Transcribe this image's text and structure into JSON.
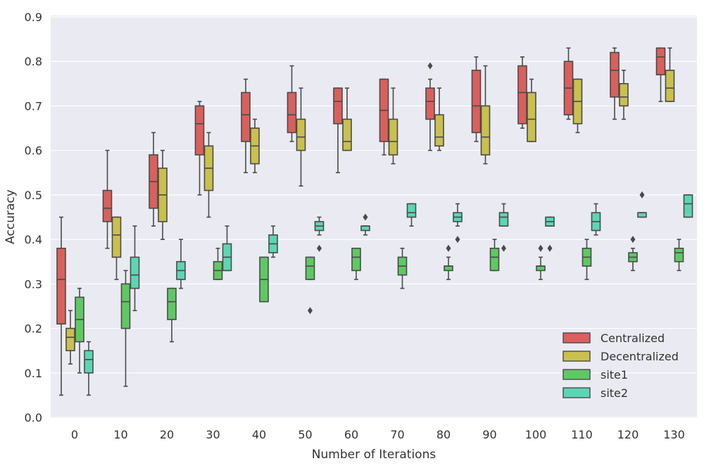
{
  "chart_data": {
    "type": "boxplot",
    "xlabel": "Number of Iterations",
    "ylabel": "Accuracy",
    "ylim": [
      0.0,
      0.9
    ],
    "yticks": [
      "0.0",
      "0.1",
      "0.2",
      "0.3",
      "0.4",
      "0.5",
      "0.6",
      "0.7",
      "0.8",
      "0.9"
    ],
    "categories": [
      "0",
      "10",
      "20",
      "30",
      "40",
      "50",
      "60",
      "70",
      "80",
      "90",
      "100",
      "110",
      "120",
      "130"
    ],
    "grid": true,
    "background": "#eaeaf2",
    "legend_position": "lower-right",
    "series": [
      {
        "name": "Centralized",
        "color": "#d9605c",
        "boxes": [
          {
            "min": 0.05,
            "q1": 0.21,
            "median": 0.31,
            "q3": 0.38,
            "max": 0.45,
            "outliers": []
          },
          {
            "min": 0.38,
            "q1": 0.44,
            "median": 0.47,
            "q3": 0.51,
            "max": 0.6,
            "outliers": []
          },
          {
            "min": 0.43,
            "q1": 0.47,
            "median": 0.53,
            "q3": 0.59,
            "max": 0.64,
            "outliers": []
          },
          {
            "min": 0.5,
            "q1": 0.59,
            "median": 0.66,
            "q3": 0.7,
            "max": 0.71,
            "outliers": []
          },
          {
            "min": 0.55,
            "q1": 0.62,
            "median": 0.68,
            "q3": 0.73,
            "max": 0.76,
            "outliers": []
          },
          {
            "min": 0.62,
            "q1": 0.64,
            "median": 0.68,
            "q3": 0.73,
            "max": 0.79,
            "outliers": []
          },
          {
            "min": 0.55,
            "q1": 0.66,
            "median": 0.71,
            "q3": 0.74,
            "max": 0.74,
            "outliers": []
          },
          {
            "min": 0.59,
            "q1": 0.62,
            "median": 0.69,
            "q3": 0.76,
            "max": 0.76,
            "outliers": []
          },
          {
            "min": 0.6,
            "q1": 0.67,
            "median": 0.71,
            "q3": 0.74,
            "max": 0.76,
            "outliers": [
              0.79
            ]
          },
          {
            "min": 0.62,
            "q1": 0.64,
            "median": 0.7,
            "q3": 0.78,
            "max": 0.81,
            "outliers": []
          },
          {
            "min": 0.65,
            "q1": 0.66,
            "median": 0.73,
            "q3": 0.79,
            "max": 0.81,
            "outliers": []
          },
          {
            "min": 0.67,
            "q1": 0.68,
            "median": 0.74,
            "q3": 0.8,
            "max": 0.83,
            "outliers": []
          },
          {
            "min": 0.67,
            "q1": 0.72,
            "median": 0.78,
            "q3": 0.82,
            "max": 0.83,
            "outliers": []
          },
          {
            "min": 0.71,
            "q1": 0.77,
            "median": 0.81,
            "q3": 0.83,
            "max": 0.83,
            "outliers": []
          }
        ]
      },
      {
        "name": "Decentralized",
        "color": "#c9c04e",
        "boxes": [
          {
            "min": 0.12,
            "q1": 0.15,
            "median": 0.18,
            "q3": 0.2,
            "max": 0.24,
            "outliers": []
          },
          {
            "min": 0.31,
            "q1": 0.36,
            "median": 0.41,
            "q3": 0.45,
            "max": 0.45,
            "outliers": []
          },
          {
            "min": 0.4,
            "q1": 0.44,
            "median": 0.5,
            "q3": 0.56,
            "max": 0.6,
            "outliers": []
          },
          {
            "min": 0.45,
            "q1": 0.51,
            "median": 0.56,
            "q3": 0.61,
            "max": 0.64,
            "outliers": []
          },
          {
            "min": 0.55,
            "q1": 0.57,
            "median": 0.61,
            "q3": 0.65,
            "max": 0.67,
            "outliers": []
          },
          {
            "min": 0.52,
            "q1": 0.6,
            "median": 0.63,
            "q3": 0.67,
            "max": 0.74,
            "outliers": []
          },
          {
            "min": 0.6,
            "q1": 0.6,
            "median": 0.62,
            "q3": 0.67,
            "max": 0.74,
            "outliers": []
          },
          {
            "min": 0.57,
            "q1": 0.59,
            "median": 0.62,
            "q3": 0.67,
            "max": 0.74,
            "outliers": []
          },
          {
            "min": 0.6,
            "q1": 0.61,
            "median": 0.63,
            "q3": 0.68,
            "max": 0.74,
            "outliers": []
          },
          {
            "min": 0.57,
            "q1": 0.59,
            "median": 0.63,
            "q3": 0.7,
            "max": 0.79,
            "outliers": []
          },
          {
            "min": 0.62,
            "q1": 0.62,
            "median": 0.67,
            "q3": 0.73,
            "max": 0.76,
            "outliers": []
          },
          {
            "min": 0.64,
            "q1": 0.66,
            "median": 0.71,
            "q3": 0.76,
            "max": 0.76,
            "outliers": []
          },
          {
            "min": 0.67,
            "q1": 0.7,
            "median": 0.72,
            "q3": 0.75,
            "max": 0.78,
            "outliers": []
          },
          {
            "min": 0.71,
            "q1": 0.71,
            "median": 0.74,
            "q3": 0.78,
            "max": 0.83,
            "outliers": []
          }
        ]
      },
      {
        "name": "site1",
        "color": "#5ec962",
        "boxes": [
          {
            "min": 0.1,
            "q1": 0.17,
            "median": 0.22,
            "q3": 0.27,
            "max": 0.29,
            "outliers": []
          },
          {
            "min": 0.07,
            "q1": 0.2,
            "median": 0.26,
            "q3": 0.3,
            "max": 0.33,
            "outliers": []
          },
          {
            "min": 0.17,
            "q1": 0.22,
            "median": 0.26,
            "q3": 0.29,
            "max": 0.29,
            "outliers": []
          },
          {
            "min": 0.31,
            "q1": 0.31,
            "median": 0.33,
            "q3": 0.35,
            "max": 0.38,
            "outliers": []
          },
          {
            "min": 0.26,
            "q1": 0.26,
            "median": 0.31,
            "q3": 0.36,
            "max": 0.36,
            "outliers": []
          },
          {
            "min": 0.31,
            "q1": 0.31,
            "median": 0.34,
            "q3": 0.36,
            "max": 0.36,
            "outliers": [
              0.24
            ]
          },
          {
            "min": 0.31,
            "q1": 0.33,
            "median": 0.36,
            "q3": 0.38,
            "max": 0.38,
            "outliers": []
          },
          {
            "min": 0.29,
            "q1": 0.32,
            "median": 0.34,
            "q3": 0.36,
            "max": 0.38,
            "outliers": []
          },
          {
            "min": 0.31,
            "q1": 0.33,
            "median": 0.34,
            "q3": 0.34,
            "max": 0.36,
            "outliers": [
              0.38
            ]
          },
          {
            "min": 0.33,
            "q1": 0.33,
            "median": 0.36,
            "q3": 0.38,
            "max": 0.4,
            "outliers": []
          },
          {
            "min": 0.31,
            "q1": 0.33,
            "median": 0.34,
            "q3": 0.34,
            "max": 0.36,
            "outliers": [
              0.38
            ]
          },
          {
            "min": 0.31,
            "q1": 0.34,
            "median": 0.36,
            "q3": 0.38,
            "max": 0.4,
            "outliers": []
          },
          {
            "min": 0.33,
            "q1": 0.35,
            "median": 0.36,
            "q3": 0.37,
            "max": 0.38,
            "outliers": [
              0.4
            ]
          },
          {
            "min": 0.33,
            "q1": 0.35,
            "median": 0.37,
            "q3": 0.38,
            "max": 0.4,
            "outliers": []
          }
        ]
      },
      {
        "name": "site2",
        "color": "#5cd6b2",
        "boxes": [
          {
            "min": 0.05,
            "q1": 0.1,
            "median": 0.13,
            "q3": 0.15,
            "max": 0.17,
            "outliers": []
          },
          {
            "min": 0.24,
            "q1": 0.29,
            "median": 0.32,
            "q3": 0.36,
            "max": 0.43,
            "outliers": []
          },
          {
            "min": 0.29,
            "q1": 0.31,
            "median": 0.33,
            "q3": 0.35,
            "max": 0.4,
            "outliers": []
          },
          {
            "min": 0.33,
            "q1": 0.33,
            "median": 0.36,
            "q3": 0.39,
            "max": 0.43,
            "outliers": []
          },
          {
            "min": 0.36,
            "q1": 0.37,
            "median": 0.39,
            "q3": 0.41,
            "max": 0.43,
            "outliers": []
          },
          {
            "min": 0.41,
            "q1": 0.42,
            "median": 0.43,
            "q3": 0.44,
            "max": 0.45,
            "outliers": [
              0.38
            ]
          },
          {
            "min": 0.41,
            "q1": 0.42,
            "median": 0.43,
            "q3": 0.43,
            "max": 0.43,
            "outliers": [
              0.45
            ]
          },
          {
            "min": 0.43,
            "q1": 0.45,
            "median": 0.46,
            "q3": 0.48,
            "max": 0.48,
            "outliers": []
          },
          {
            "min": 0.43,
            "q1": 0.44,
            "median": 0.45,
            "q3": 0.46,
            "max": 0.48,
            "outliers": [
              0.4
            ]
          },
          {
            "min": 0.43,
            "q1": 0.43,
            "median": 0.45,
            "q3": 0.46,
            "max": 0.48,
            "outliers": [
              0.38
            ]
          },
          {
            "min": 0.43,
            "q1": 0.43,
            "median": 0.44,
            "q3": 0.45,
            "max": 0.45,
            "outliers": [
              0.38
            ]
          },
          {
            "min": 0.41,
            "q1": 0.42,
            "median": 0.44,
            "q3": 0.46,
            "max": 0.48,
            "outliers": []
          },
          {
            "min": 0.45,
            "q1": 0.45,
            "median": 0.46,
            "q3": 0.46,
            "max": 0.46,
            "outliers": [
              0.5
            ]
          },
          {
            "min": 0.45,
            "q1": 0.45,
            "median": 0.48,
            "q3": 0.5,
            "max": 0.5,
            "outliers": []
          }
        ]
      }
    ]
  }
}
